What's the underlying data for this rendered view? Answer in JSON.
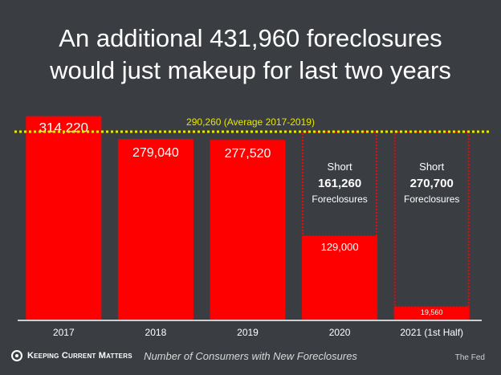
{
  "title_line1": "An additional 431,960 foreclosures",
  "title_line2": "would just makeup for last two years",
  "footer": {
    "brand": "Keeping Current Matters",
    "caption": "Number of Consumers with New Foreclosures",
    "source": "The Fed"
  },
  "colors": {
    "bar": "#ff0000",
    "average_line": "#e8e800",
    "background": "#3a3d42"
  },
  "chart_data": {
    "type": "bar",
    "categories": [
      "2017",
      "2018",
      "2019",
      "2020",
      "2021 (1st Half)"
    ],
    "values": [
      314220,
      279040,
      277520,
      129000,
      19560
    ],
    "value_labels": [
      "314,220",
      "279,040",
      "277,520",
      "129,000",
      "19,560"
    ],
    "average": {
      "value": 290260,
      "label": "290,260 (Average 2017-2019)"
    },
    "shortfalls": [
      {
        "category": "2020",
        "top": "Short",
        "value": "161,260",
        "bottom": "Foreclosures"
      },
      {
        "category": "2021 (1st Half)",
        "top": "Short",
        "value": "270,700",
        "bottom": "Foreclosures"
      }
    ],
    "ylim": [
      0,
      320000
    ],
    "grid": false
  }
}
